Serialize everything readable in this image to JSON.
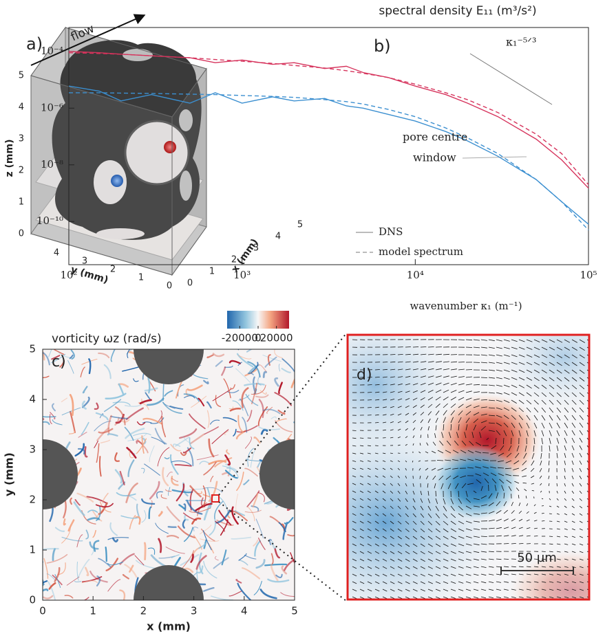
{
  "panel_a": {
    "label": "a)",
    "flow": "flow",
    "x_label": "x (mm)",
    "y_label": "y (mm)",
    "z_label": "z (mm)",
    "x_ticks": [
      0,
      1,
      2,
      3,
      4,
      5
    ],
    "y_ticks": [
      0,
      1,
      2,
      3,
      4
    ],
    "z_ticks": [
      0,
      1,
      2,
      3,
      4,
      5
    ]
  },
  "chart_data": {
    "type": "line",
    "label": "b)",
    "title": "spectral density E₁₁ (m³/s²)",
    "x_label": "wavenumber κ₁ (m⁻¹)",
    "xscale": "log",
    "yscale": "log",
    "xlim": [
      100,
      100000
    ],
    "ylim": [
      3e-12,
      0.0007
    ],
    "xticks": [
      {
        "value": 100,
        "label": "10²"
      },
      {
        "value": 1000,
        "label": "10³"
      },
      {
        "value": 10000,
        "label": "10⁴"
      },
      {
        "value": 100000,
        "label": "10⁵"
      }
    ],
    "yticks": [
      {
        "value": 0.0001,
        "label": "10⁻⁴"
      },
      {
        "value": 1e-06,
        "label": "10⁻⁶"
      },
      {
        "value": 1e-08,
        "label": "10⁻⁸"
      },
      {
        "value": 1e-10,
        "label": "10⁻¹⁰"
      }
    ],
    "x": [
      100,
      150,
      200,
      300,
      500,
      700,
      1000,
      1500,
      2000,
      3000,
      4000,
      5000,
      7000,
      10000,
      15000,
      20000,
      30000,
      50000,
      70000,
      100000
    ],
    "series": [
      {
        "color": "#d6335c",
        "dashed": false,
        "values": [
          0.0001,
          9e-05,
          8e-05,
          7e-05,
          6e-05,
          4e-05,
          5e-05,
          3.5e-05,
          4e-05,
          2.5e-05,
          3e-05,
          1.8e-05,
          1.2e-05,
          6e-06,
          3e-06,
          1.5e-06,
          5e-07,
          8e-08,
          1.5e-08,
          1.5e-09
        ]
      },
      {
        "color": "#d6335c",
        "dashed": true,
        "values": [
          9e-05,
          8.5e-05,
          8e-05,
          7e-05,
          6e-05,
          5.2e-05,
          4.5e-05,
          3.8e-05,
          3.2e-05,
          2.6e-05,
          2.1e-05,
          1.7e-05,
          1.2e-05,
          7e-06,
          3.5e-06,
          2e-06,
          7e-07,
          1.2e-07,
          2.5e-08,
          2e-09
        ]
      },
      {
        "color": "#3b8fd0",
        "dashed": false,
        "values": [
          6e-06,
          4e-06,
          1.8e-06,
          3e-06,
          1.5e-06,
          3.5e-06,
          1.5e-06,
          2.5e-06,
          1.8e-06,
          2.2e-06,
          1.2e-06,
          1e-06,
          6e-07,
          3.5e-07,
          1.5e-07,
          7e-08,
          2e-08,
          3e-09,
          5e-10,
          8e-11
        ]
      },
      {
        "color": "#3b8fd0",
        "dashed": true,
        "values": [
          3.5e-06,
          3.5e-06,
          3.4e-06,
          3.3e-06,
          3.1e-06,
          3e-06,
          2.8e-06,
          2.6e-06,
          2.4e-06,
          2e-06,
          1.7e-06,
          1.4e-06,
          9e-07,
          5e-07,
          2e-07,
          9e-08,
          2.5e-08,
          3e-09,
          5e-10,
          5e-11
        ]
      }
    ],
    "annotations": [
      {
        "text": "pore centre",
        "color": "#d6335c"
      },
      {
        "text": "window",
        "color": "#3b8fd0"
      },
      {
        "text": "κ₁⁻⁵ᐟ³",
        "color": "#333333"
      }
    ],
    "legend": [
      {
        "label": "DNS",
        "dashed": false
      },
      {
        "label": "model spectrum",
        "dashed": true
      }
    ]
  },
  "panel_c": {
    "label": "c)",
    "title": "vorticity ωz (rad/s)",
    "colorbar_ticks": [
      -20000,
      0,
      20000
    ],
    "clim": [
      -30000,
      30000
    ],
    "xlim": [
      0,
      5
    ],
    "ylim": [
      0,
      5
    ],
    "xticks": [
      0,
      1,
      2,
      3,
      4,
      5
    ],
    "yticks": [
      0,
      1,
      2,
      3,
      4,
      5
    ],
    "x_label": "x (mm)",
    "y_label": "y (mm)"
  },
  "panel_d": {
    "label": "d)",
    "scale_label": "50 µm"
  }
}
